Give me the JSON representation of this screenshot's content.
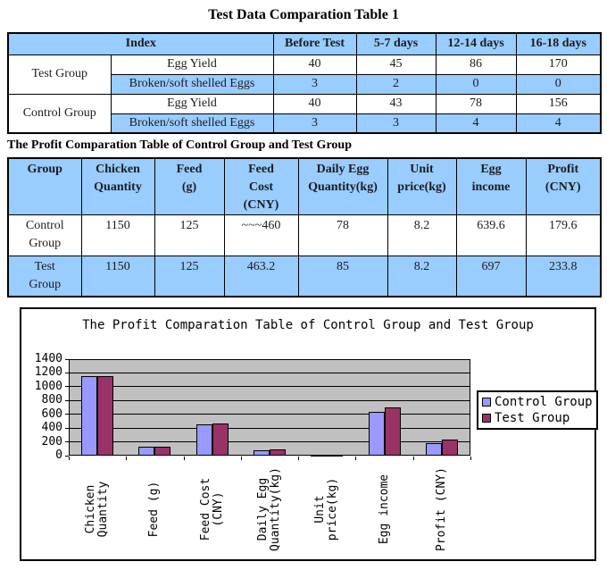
{
  "page": {
    "title1": "Test Data Comparation Table 1",
    "title2": "The Profit Comparation Table of Control Group and Test Group"
  },
  "colors": {
    "table_fill": "#99ccff",
    "control_series": "#9999ff",
    "test_series": "#993366",
    "plot_background": "#c0c0c0"
  },
  "table1": {
    "header": {
      "index": "Index",
      "cols": [
        "Before Test",
        "5-7 days",
        "12-14 days",
        "16-18 days"
      ]
    },
    "groups": [
      {
        "name": "Test Group",
        "rows": [
          {
            "label": "Egg Yield",
            "values": [
              "40",
              "45",
              "86",
              "170"
            ]
          },
          {
            "label": "Broken/soft shelled Eggs",
            "values": [
              "3",
              "2",
              "0",
              "0"
            ]
          }
        ]
      },
      {
        "name": "Control Group",
        "rows": [
          {
            "label": "Egg Yield",
            "values": [
              "40",
              "43",
              "78",
              "156"
            ]
          },
          {
            "label": "Broken/soft shelled Eggs",
            "values": [
              "3",
              "3",
              "4",
              "4"
            ]
          }
        ]
      }
    ]
  },
  "table2": {
    "header": [
      "Group",
      "Chicken\nQuantity",
      "Feed\n(g)",
      "Feed\nCost\n(CNY)",
      "Daily Egg\nQuantity(kg)",
      "Unit\nprice(kg)",
      "Egg\nincome",
      "Profit\n(CNY)"
    ],
    "rows": [
      {
        "group": "Control\nGroup",
        "values": [
          "1150",
          "125",
          "~~~460",
          "78",
          "8.2",
          "639.6",
          "179.6"
        ]
      },
      {
        "group": "Test\nGroup",
        "values": [
          "1150",
          "125",
          "463.2",
          "85",
          "8.2",
          "697",
          "233.8"
        ]
      }
    ]
  },
  "chart_data": {
    "type": "bar",
    "title": "The Profit Comparation Table of Control Group and Test Group",
    "categories": [
      "Chicken\nQuantity",
      "Feed (g)",
      "Feed Cost\n(CNY)",
      "Daily Egg\nQuantity(kg)",
      "Unit\nprice(kg)",
      "Egg income",
      "Profit (CNY)"
    ],
    "series": [
      {
        "name": "Control Group",
        "color": "#9999ff",
        "values": [
          1150,
          125,
          460,
          78,
          8.2,
          639.6,
          179.6
        ]
      },
      {
        "name": "Test Group",
        "color": "#993366",
        "values": [
          1150,
          125,
          463.2,
          85,
          8.2,
          697,
          233.8
        ]
      }
    ],
    "ylim": [
      0,
      1400
    ],
    "ytick_step": 200,
    "grid": true,
    "legend_position": "right",
    "plot_bg": "#c0c0c0"
  }
}
